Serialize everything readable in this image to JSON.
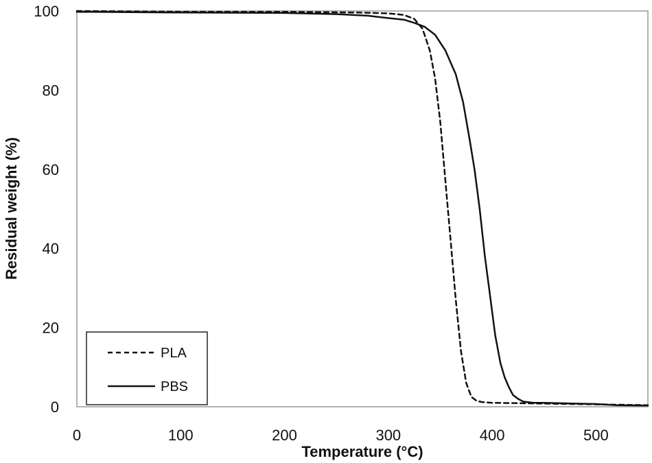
{
  "chart_data": {
    "type": "line",
    "title": "",
    "xlabel": "Temperature (°C)",
    "ylabel": "Residual weight (%)",
    "xlim": [
      0,
      550
    ],
    "ylim": [
      0,
      100
    ],
    "x_ticks": [
      0,
      100,
      200,
      300,
      400,
      500
    ],
    "y_ticks": [
      0,
      20,
      40,
      60,
      80,
      100
    ],
    "x_tick_labels": [
      "0",
      "100",
      "200",
      "300",
      "400",
      "500"
    ],
    "y_tick_labels": [
      "0",
      "20",
      "40",
      "60",
      "80",
      "100"
    ],
    "grid": false,
    "legend_position": "bottom-left",
    "series": [
      {
        "name": "PLA",
        "line_style": "dashed",
        "color": "#111111",
        "points": [
          [
            0,
            100
          ],
          [
            100,
            99.8
          ],
          [
            200,
            99.8
          ],
          [
            270,
            99.6
          ],
          [
            300,
            99.4
          ],
          [
            315,
            99
          ],
          [
            325,
            98
          ],
          [
            333,
            95.5
          ],
          [
            340,
            90
          ],
          [
            345,
            83
          ],
          [
            350,
            72
          ],
          [
            355,
            57
          ],
          [
            360,
            42
          ],
          [
            365,
            27
          ],
          [
            370,
            14
          ],
          [
            375,
            6
          ],
          [
            380,
            2.5
          ],
          [
            385,
            1.5
          ],
          [
            390,
            1.2
          ],
          [
            400,
            1
          ],
          [
            450,
            0.8
          ],
          [
            500,
            0.6
          ],
          [
            550,
            0.4
          ]
        ]
      },
      {
        "name": "PBS",
        "line_style": "solid",
        "color": "#111111",
        "points": [
          [
            0,
            99.8
          ],
          [
            100,
            99.6
          ],
          [
            200,
            99.5
          ],
          [
            250,
            99.2
          ],
          [
            280,
            98.8
          ],
          [
            300,
            98.2
          ],
          [
            315,
            97.8
          ],
          [
            325,
            97
          ],
          [
            335,
            96
          ],
          [
            345,
            94
          ],
          [
            355,
            90
          ],
          [
            365,
            84
          ],
          [
            372,
            77
          ],
          [
            378,
            68
          ],
          [
            383,
            60
          ],
          [
            388,
            50
          ],
          [
            393,
            38
          ],
          [
            398,
            28
          ],
          [
            403,
            18
          ],
          [
            408,
            11
          ],
          [
            412,
            7.5
          ],
          [
            416,
            5
          ],
          [
            420,
            3
          ],
          [
            425,
            2
          ],
          [
            430,
            1.3
          ],
          [
            440,
            1
          ],
          [
            450,
            1
          ],
          [
            480,
            0.8
          ],
          [
            500,
            0.7
          ],
          [
            520,
            0.4
          ],
          [
            550,
            0.3
          ]
        ]
      }
    ]
  }
}
